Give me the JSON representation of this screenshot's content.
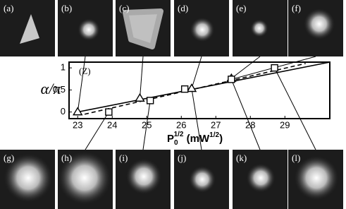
{
  "panels": [
    "(a)",
    "(b)",
    "(c)",
    "(d)",
    "(e)",
    "(f)",
    "(g)",
    "(h)",
    "(i)",
    "(j)",
    "(k)",
    "(l)"
  ],
  "chart_data": {
    "type": "scatter",
    "annotation": "(Z)",
    "ylabel": "α/π",
    "xlabel": {
      "base": "P",
      "sub": "0",
      "sup": "1/2",
      "unit": " (mW",
      "unit_sup": "1/2",
      "close": ")"
    },
    "xlim": [
      22.75,
      30.3
    ],
    "ylim": [
      -0.15,
      1.13
    ],
    "xticks": [
      23,
      24,
      25,
      26,
      27,
      28,
      29
    ],
    "yticks": [
      0,
      0.5,
      1
    ],
    "series": [
      {
        "marker": "triangle",
        "color": "#000000",
        "x": [
          23.0,
          24.8,
          26.3,
          27.45
        ],
        "values": [
          0,
          0.31,
          0.53,
          0.76
        ]
      },
      {
        "marker": "square",
        "color": "#000000",
        "x": [
          23.9,
          25.1,
          26.1,
          27.45,
          28.7
        ],
        "values": [
          0,
          0.26,
          0.52,
          0.74,
          1.0
        ]
      }
    ],
    "fits": [
      {
        "dash": false,
        "x": [
          23.0,
          30.3
        ],
        "values": [
          0,
          1.13
        ]
      },
      {
        "dash": true,
        "x": [
          23.2,
          29.6
        ],
        "values": [
          -0.05,
          1.1
        ]
      }
    ]
  }
}
